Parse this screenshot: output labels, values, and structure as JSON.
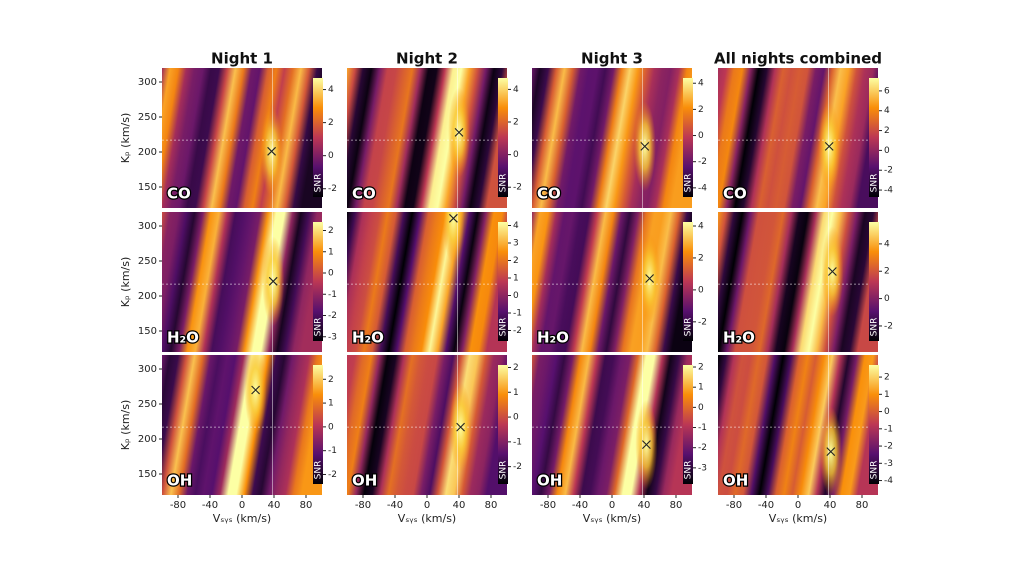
{
  "chart_data": [
    {
      "type": "heatmap",
      "title": "Night 1",
      "label": "CO",
      "ylabel": "Kₚ (km/s)",
      "xlim": [
        -100,
        100
      ],
      "ylim": [
        120,
        320
      ],
      "yticks": [
        150,
        200,
        250,
        300
      ],
      "clim": [
        -2.5,
        4.7
      ],
      "cticks": [
        -2,
        0,
        2,
        4
      ],
      "clabel": "SNR",
      "peak": {
        "x": 37,
        "y": 201
      },
      "vline": 38,
      "hline": 217
    },
    {
      "type": "heatmap",
      "title": "Night 2",
      "label": "CO",
      "xlim": [
        -100,
        100
      ],
      "ylim": [
        120,
        320
      ],
      "clim": [
        -2.6,
        4.7
      ],
      "cticks": [
        -2,
        0,
        2,
        4
      ],
      "clabel": "SNR",
      "peak": {
        "x": 40,
        "y": 228
      },
      "vline": 38,
      "hline": 217
    },
    {
      "type": "heatmap",
      "title": "Night 3",
      "label": "CO",
      "xlim": [
        -100,
        100
      ],
      "ylim": [
        120,
        320
      ],
      "clim": [
        -4.7,
        4.4
      ],
      "cticks": [
        -4,
        -2,
        0,
        2,
        4
      ],
      "clabel": "SNR",
      "peak": {
        "x": 41,
        "y": 208
      },
      "vline": 38,
      "hline": 217
    },
    {
      "type": "heatmap",
      "title": "All nights combined",
      "label": "CO",
      "xlim": [
        -100,
        100
      ],
      "ylim": [
        120,
        320
      ],
      "clim": [
        -4.7,
        7.3
      ],
      "cticks": [
        -4,
        -2,
        0,
        2,
        4,
        6
      ],
      "clabel": "SNR",
      "peak": {
        "x": 39,
        "y": 208
      },
      "vline": 38,
      "hline": 217
    },
    {
      "type": "heatmap",
      "label": "H₂O",
      "ylabel": "Kₚ (km/s)",
      "xlim": [
        -100,
        100
      ],
      "ylim": [
        120,
        320
      ],
      "yticks": [
        150,
        200,
        250,
        300
      ],
      "clim": [
        -3.2,
        2.4
      ],
      "cticks": [
        -3,
        -2,
        -1,
        0,
        1,
        2
      ],
      "clabel": "SNR",
      "peak": {
        "x": 39,
        "y": 221
      },
      "vline": 38,
      "hline": 217
    },
    {
      "type": "heatmap",
      "label": "H₂O",
      "xlim": [
        -100,
        100
      ],
      "ylim": [
        120,
        320
      ],
      "clim": [
        -2.6,
        4.2
      ],
      "cticks": [
        -2,
        -1,
        0,
        1,
        2,
        3,
        4
      ],
      "clabel": "SNR",
      "peak": {
        "x": 33,
        "y": 311
      },
      "vline": 38,
      "hline": 217
    },
    {
      "type": "heatmap",
      "label": "H₂O",
      "xlim": [
        -100,
        100
      ],
      "ylim": [
        120,
        320
      ],
      "clim": [
        -3.2,
        4.25
      ],
      "cticks": [
        -2,
        0,
        2,
        4
      ],
      "clabel": "SNR",
      "peak": {
        "x": 47,
        "y": 225
      },
      "vline": 38,
      "hline": 217
    },
    {
      "type": "heatmap",
      "label": "H₂O",
      "xlim": [
        -100,
        100
      ],
      "ylim": [
        120,
        320
      ],
      "clim": [
        -3.1,
        5.6
      ],
      "cticks": [
        -2,
        0,
        2,
        4
      ],
      "clabel": "SNR",
      "peak": {
        "x": 43,
        "y": 235
      },
      "vline": 38,
      "hline": 217
    },
    {
      "type": "heatmap",
      "label": "OH",
      "ylabel": "Kₚ (km/s)",
      "xlabel": "Vₛᵧₛ (km/s)",
      "xlim": [
        -100,
        100
      ],
      "ylim": [
        120,
        320
      ],
      "xticks": [
        -80,
        -40,
        0,
        40,
        80
      ],
      "yticks": [
        150,
        200,
        250,
        300
      ],
      "clim": [
        -2.4,
        2.6
      ],
      "cticks": [
        -2,
        -1,
        0,
        1,
        2
      ],
      "clabel": "SNR",
      "peak": {
        "x": 17,
        "y": 270
      },
      "vline": 38,
      "hline": 217
    },
    {
      "type": "heatmap",
      "label": "OH",
      "xlabel": "Vₛᵧₛ (km/s)",
      "xlim": [
        -100,
        100
      ],
      "ylim": [
        120,
        320
      ],
      "xticks": [
        -80,
        -40,
        0,
        40,
        80
      ],
      "clim": [
        -2.7,
        2.1
      ],
      "cticks": [
        -2,
        -1,
        0,
        1,
        2
      ],
      "clabel": "SNR",
      "peak": {
        "x": 42,
        "y": 217
      },
      "vline": 38,
      "hline": 217
    },
    {
      "type": "heatmap",
      "label": "OH",
      "xlabel": "Vₛᵧₛ (km/s)",
      "xlim": [
        -100,
        100
      ],
      "ylim": [
        120,
        320
      ],
      "xticks": [
        -80,
        -40,
        0,
        40,
        80
      ],
      "clim": [
        -3.8,
        2.1
      ],
      "cticks": [
        -3,
        -2,
        -1,
        0,
        1,
        2
      ],
      "clabel": "SNR",
      "peak": {
        "x": 43,
        "y": 192
      },
      "vline": 38,
      "hline": 217
    },
    {
      "type": "heatmap",
      "label": "OH",
      "xlabel": "Vₛᵧₛ (km/s)",
      "xlim": [
        -100,
        100
      ],
      "ylim": [
        120,
        320
      ],
      "xticks": [
        -80,
        -40,
        0,
        40,
        80
      ],
      "clim": [
        -4.2,
        2.7
      ],
      "cticks": [
        -4,
        -3,
        -2,
        -1,
        0,
        1,
        2
      ],
      "clabel": "SNR",
      "peak": {
        "x": 41,
        "y": 182
      },
      "vline": 38,
      "hline": 217
    }
  ]
}
